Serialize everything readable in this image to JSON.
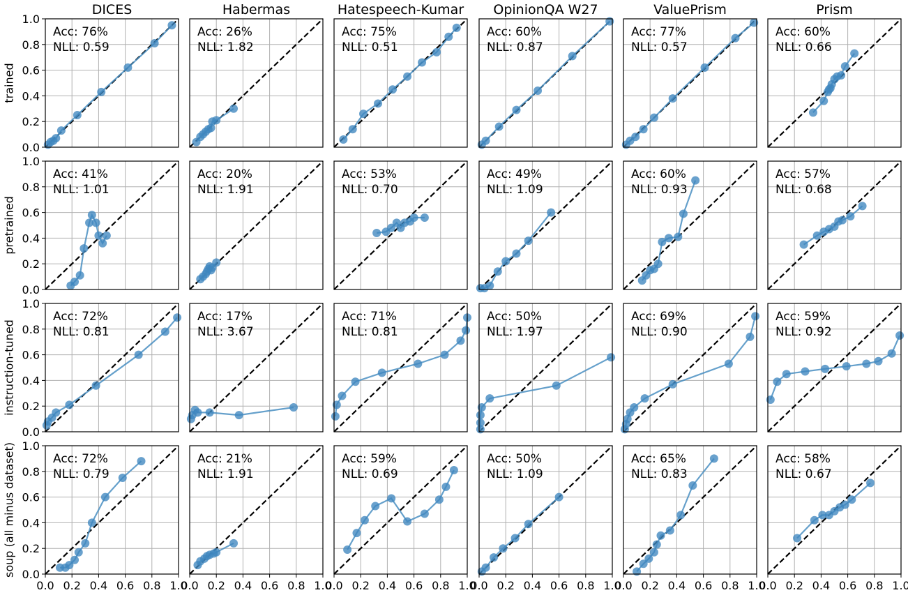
{
  "chart_data": {
    "type": "line",
    "xlim": [
      0,
      1
    ],
    "ylim": [
      0,
      1
    ],
    "grid": true,
    "diagonal": "dashed y = x",
    "x_ticks": [
      "0.0",
      "0.2",
      "0.4",
      "0.6",
      "0.8",
      "1.0"
    ],
    "y_ticks": [
      "0.0",
      "0.2",
      "0.4",
      "0.6",
      "0.8",
      "1.0"
    ],
    "columns": [
      "DICES",
      "Habermas",
      "Hatespeech-Kumar",
      "OpinionQA W27",
      "ValuePrism",
      "Prism"
    ],
    "rows": [
      "trained",
      "pretrained",
      "instruction-tuned",
      "soup (all minus dataset)"
    ],
    "colors": {
      "series": "#3f86bf",
      "diagonal": "#000000",
      "grid": "#b0b0b0"
    },
    "panels": [
      [
        {
          "acc": "Acc: 76%",
          "nll": "NLL: 0.59",
          "points": [
            [
              0.02,
              0.02
            ],
            [
              0.04,
              0.04
            ],
            [
              0.06,
              0.05
            ],
            [
              0.08,
              0.07
            ],
            [
              0.12,
              0.13
            ],
            [
              0.24,
              0.25
            ],
            [
              0.42,
              0.43
            ],
            [
              0.62,
              0.62
            ],
            [
              0.82,
              0.81
            ],
            [
              0.95,
              0.95
            ]
          ]
        },
        {
          "acc": "Acc: 26%",
          "nll": "NLL: 1.82",
          "points": [
            [
              0.05,
              0.04
            ],
            [
              0.08,
              0.08
            ],
            [
              0.1,
              0.1
            ],
            [
              0.12,
              0.12
            ],
            [
              0.14,
              0.14
            ],
            [
              0.16,
              0.15
            ],
            [
              0.17,
              0.2
            ],
            [
              0.2,
              0.21
            ],
            [
              0.33,
              0.3
            ]
          ]
        },
        {
          "acc": "Acc: 75%",
          "nll": "NLL: 0.51",
          "points": [
            [
              0.07,
              0.06
            ],
            [
              0.14,
              0.14
            ],
            [
              0.22,
              0.26
            ],
            [
              0.33,
              0.34
            ],
            [
              0.44,
              0.45
            ],
            [
              0.55,
              0.55
            ],
            [
              0.66,
              0.66
            ],
            [
              0.77,
              0.74
            ],
            [
              0.86,
              0.86
            ],
            [
              0.92,
              0.93
            ]
          ]
        },
        {
          "acc": "Acc: 60%",
          "nll": "NLL: 0.87",
          "points": [
            [
              0.02,
              0.02
            ],
            [
              0.05,
              0.05
            ],
            [
              0.15,
              0.16
            ],
            [
              0.28,
              0.29
            ],
            [
              0.44,
              0.44
            ],
            [
              0.7,
              0.71
            ],
            [
              0.98,
              0.98
            ]
          ]
        },
        {
          "acc": "Acc: 77%",
          "nll": "NLL: 0.57",
          "points": [
            [
              0.02,
              0.02
            ],
            [
              0.05,
              0.05
            ],
            [
              0.09,
              0.08
            ],
            [
              0.15,
              0.14
            ],
            [
              0.23,
              0.23
            ],
            [
              0.37,
              0.38
            ],
            [
              0.61,
              0.62
            ],
            [
              0.84,
              0.85
            ],
            [
              0.98,
              0.97
            ]
          ]
        },
        {
          "acc": "Acc: 60%",
          "nll": "NLL: 0.66",
          "points": [
            [
              0.34,
              0.27
            ],
            [
              0.42,
              0.36
            ],
            [
              0.45,
              0.43
            ],
            [
              0.46,
              0.45
            ],
            [
              0.47,
              0.46
            ],
            [
              0.48,
              0.49
            ],
            [
              0.5,
              0.53
            ],
            [
              0.52,
              0.55
            ],
            [
              0.55,
              0.56
            ],
            [
              0.58,
              0.63
            ],
            [
              0.65,
              0.73
            ]
          ]
        }
      ],
      [
        {
          "acc": "Acc: 41%",
          "nll": "NLL: 1.01",
          "points": [
            [
              0.19,
              0.03
            ],
            [
              0.22,
              0.06
            ],
            [
              0.26,
              0.11
            ],
            [
              0.29,
              0.32
            ],
            [
              0.33,
              0.52
            ],
            [
              0.35,
              0.58
            ],
            [
              0.38,
              0.52
            ],
            [
              0.4,
              0.42
            ],
            [
              0.43,
              0.36
            ],
            [
              0.46,
              0.42
            ]
          ]
        },
        {
          "acc": "Acc: 20%",
          "nll": "NLL: 1.91",
          "points": [
            [
              0.08,
              0.08
            ],
            [
              0.1,
              0.1
            ],
            [
              0.12,
              0.12
            ],
            [
              0.13,
              0.14
            ],
            [
              0.14,
              0.16
            ],
            [
              0.15,
              0.18
            ],
            [
              0.16,
              0.15
            ],
            [
              0.17,
              0.17
            ],
            [
              0.2,
              0.21
            ]
          ]
        },
        {
          "acc": "Acc: 53%",
          "nll": "NLL: 0.70",
          "points": [
            [
              0.32,
              0.44
            ],
            [
              0.39,
              0.45
            ],
            [
              0.43,
              0.48
            ],
            [
              0.47,
              0.52
            ],
            [
              0.5,
              0.48
            ],
            [
              0.53,
              0.52
            ],
            [
              0.57,
              0.53
            ],
            [
              0.6,
              0.56
            ],
            [
              0.68,
              0.56
            ]
          ]
        },
        {
          "acc": "Acc: 49%",
          "nll": "NLL: 1.09",
          "points": [
            [
              0.01,
              0.01
            ],
            [
              0.04,
              0.01
            ],
            [
              0.08,
              0.03
            ],
            [
              0.14,
              0.14
            ],
            [
              0.2,
              0.22
            ],
            [
              0.28,
              0.28
            ],
            [
              0.37,
              0.38
            ],
            [
              0.54,
              0.6
            ]
          ]
        },
        {
          "acc": "Acc: 60%",
          "nll": "NLL: 0.93",
          "points": [
            [
              0.14,
              0.07
            ],
            [
              0.17,
              0.11
            ],
            [
              0.2,
              0.15
            ],
            [
              0.23,
              0.16
            ],
            [
              0.26,
              0.2
            ],
            [
              0.29,
              0.37
            ],
            [
              0.34,
              0.4
            ],
            [
              0.41,
              0.41
            ],
            [
              0.45,
              0.59
            ],
            [
              0.54,
              0.85
            ]
          ]
        },
        {
          "acc": "Acc: 57%",
          "nll": "NLL: 0.68",
          "points": [
            [
              0.27,
              0.35
            ],
            [
              0.37,
              0.42
            ],
            [
              0.42,
              0.45
            ],
            [
              0.46,
              0.47
            ],
            [
              0.5,
              0.49
            ],
            [
              0.53,
              0.53
            ],
            [
              0.56,
              0.54
            ],
            [
              0.62,
              0.57
            ],
            [
              0.71,
              0.65
            ]
          ]
        }
      ],
      [
        {
          "acc": "Acc: 72%",
          "nll": "NLL: 0.81",
          "points": [
            [
              0.01,
              0.05
            ],
            [
              0.02,
              0.08
            ],
            [
              0.05,
              0.11
            ],
            [
              0.08,
              0.15
            ],
            [
              0.18,
              0.21
            ],
            [
              0.38,
              0.36
            ],
            [
              0.7,
              0.6
            ],
            [
              0.9,
              0.78
            ],
            [
              0.99,
              0.89
            ]
          ]
        },
        {
          "acc": "Acc: 17%",
          "nll": "NLL: 3.67",
          "points": [
            [
              0.01,
              0.1
            ],
            [
              0.02,
              0.13
            ],
            [
              0.04,
              0.17
            ],
            [
              0.06,
              0.15
            ],
            [
              0.15,
              0.15
            ],
            [
              0.37,
              0.13
            ],
            [
              0.78,
              0.19
            ]
          ]
        },
        {
          "acc": "Acc: 71%",
          "nll": "NLL: 0.81",
          "points": [
            [
              0.01,
              0.12
            ],
            [
              0.02,
              0.21
            ],
            [
              0.06,
              0.28
            ],
            [
              0.16,
              0.39
            ],
            [
              0.36,
              0.46
            ],
            [
              0.63,
              0.53
            ],
            [
              0.83,
              0.6
            ],
            [
              0.95,
              0.71
            ],
            [
              0.99,
              0.79
            ],
            [
              1.0,
              0.89
            ]
          ]
        },
        {
          "acc": "Acc: 50%",
          "nll": "NLL: 1.97",
          "points": [
            [
              0.01,
              0.02
            ],
            [
              0.01,
              0.07
            ],
            [
              0.01,
              0.13
            ],
            [
              0.02,
              0.19
            ],
            [
              0.08,
              0.26
            ],
            [
              0.58,
              0.36
            ],
            [
              0.99,
              0.58
            ]
          ]
        },
        {
          "acc": "Acc: 69%",
          "nll": "NLL: 0.90",
          "points": [
            [
              0.01,
              0.02
            ],
            [
              0.02,
              0.06
            ],
            [
              0.03,
              0.1
            ],
            [
              0.05,
              0.15
            ],
            [
              0.08,
              0.19
            ],
            [
              0.16,
              0.26
            ],
            [
              0.37,
              0.37
            ],
            [
              0.79,
              0.53
            ],
            [
              0.95,
              0.74
            ],
            [
              0.99,
              0.9
            ]
          ]
        },
        {
          "acc": "Acc: 59%",
          "nll": "NLL: 0.92",
          "points": [
            [
              0.02,
              0.25
            ],
            [
              0.07,
              0.39
            ],
            [
              0.14,
              0.45
            ],
            [
              0.28,
              0.47
            ],
            [
              0.43,
              0.49
            ],
            [
              0.59,
              0.51
            ],
            [
              0.74,
              0.53
            ],
            [
              0.83,
              0.55
            ],
            [
              0.93,
              0.61
            ],
            [
              0.99,
              0.75
            ]
          ]
        }
      ],
      [
        {
          "acc": "Acc: 72%",
          "nll": "NLL: 0.79",
          "points": [
            [
              0.11,
              0.05
            ],
            [
              0.15,
              0.05
            ],
            [
              0.18,
              0.07
            ],
            [
              0.22,
              0.11
            ],
            [
              0.25,
              0.17
            ],
            [
              0.3,
              0.24
            ],
            [
              0.35,
              0.4
            ],
            [
              0.45,
              0.6
            ],
            [
              0.58,
              0.75
            ],
            [
              0.72,
              0.88
            ]
          ]
        },
        {
          "acc": "Acc: 21%",
          "nll": "NLL: 1.91",
          "points": [
            [
              0.06,
              0.07
            ],
            [
              0.08,
              0.1
            ],
            [
              0.11,
              0.12
            ],
            [
              0.13,
              0.14
            ],
            [
              0.15,
              0.15
            ],
            [
              0.18,
              0.16
            ],
            [
              0.2,
              0.17
            ],
            [
              0.33,
              0.24
            ]
          ]
        },
        {
          "acc": "Acc: 59%",
          "nll": "NLL: 0.69",
          "points": [
            [
              0.1,
              0.19
            ],
            [
              0.17,
              0.32
            ],
            [
              0.23,
              0.42
            ],
            [
              0.31,
              0.53
            ],
            [
              0.43,
              0.59
            ],
            [
              0.55,
              0.41
            ],
            [
              0.68,
              0.47
            ],
            [
              0.79,
              0.58
            ],
            [
              0.84,
              0.68
            ],
            [
              0.9,
              0.81
            ]
          ]
        },
        {
          "acc": "Acc: 50%",
          "nll": "NLL: 1.09",
          "points": [
            [
              0.02,
              0.02
            ],
            [
              0.05,
              0.05
            ],
            [
              0.11,
              0.13
            ],
            [
              0.18,
              0.2
            ],
            [
              0.27,
              0.28
            ],
            [
              0.37,
              0.39
            ],
            [
              0.6,
              0.6
            ]
          ]
        },
        {
          "acc": "Acc: 65%",
          "nll": "NLL: 0.83",
          "points": [
            [
              0.1,
              0.02
            ],
            [
              0.15,
              0.08
            ],
            [
              0.19,
              0.12
            ],
            [
              0.23,
              0.17
            ],
            [
              0.25,
              0.23
            ],
            [
              0.28,
              0.3
            ],
            [
              0.35,
              0.34
            ],
            [
              0.43,
              0.46
            ],
            [
              0.52,
              0.69
            ],
            [
              0.68,
              0.9
            ]
          ]
        },
        {
          "acc": "Acc: 58%",
          "nll": "NLL: 0.67",
          "points": [
            [
              0.22,
              0.28
            ],
            [
              0.35,
              0.42
            ],
            [
              0.41,
              0.46
            ],
            [
              0.46,
              0.46
            ],
            [
              0.5,
              0.49
            ],
            [
              0.54,
              0.52
            ],
            [
              0.58,
              0.54
            ],
            [
              0.63,
              0.58
            ],
            [
              0.77,
              0.71
            ]
          ]
        }
      ]
    ]
  }
}
